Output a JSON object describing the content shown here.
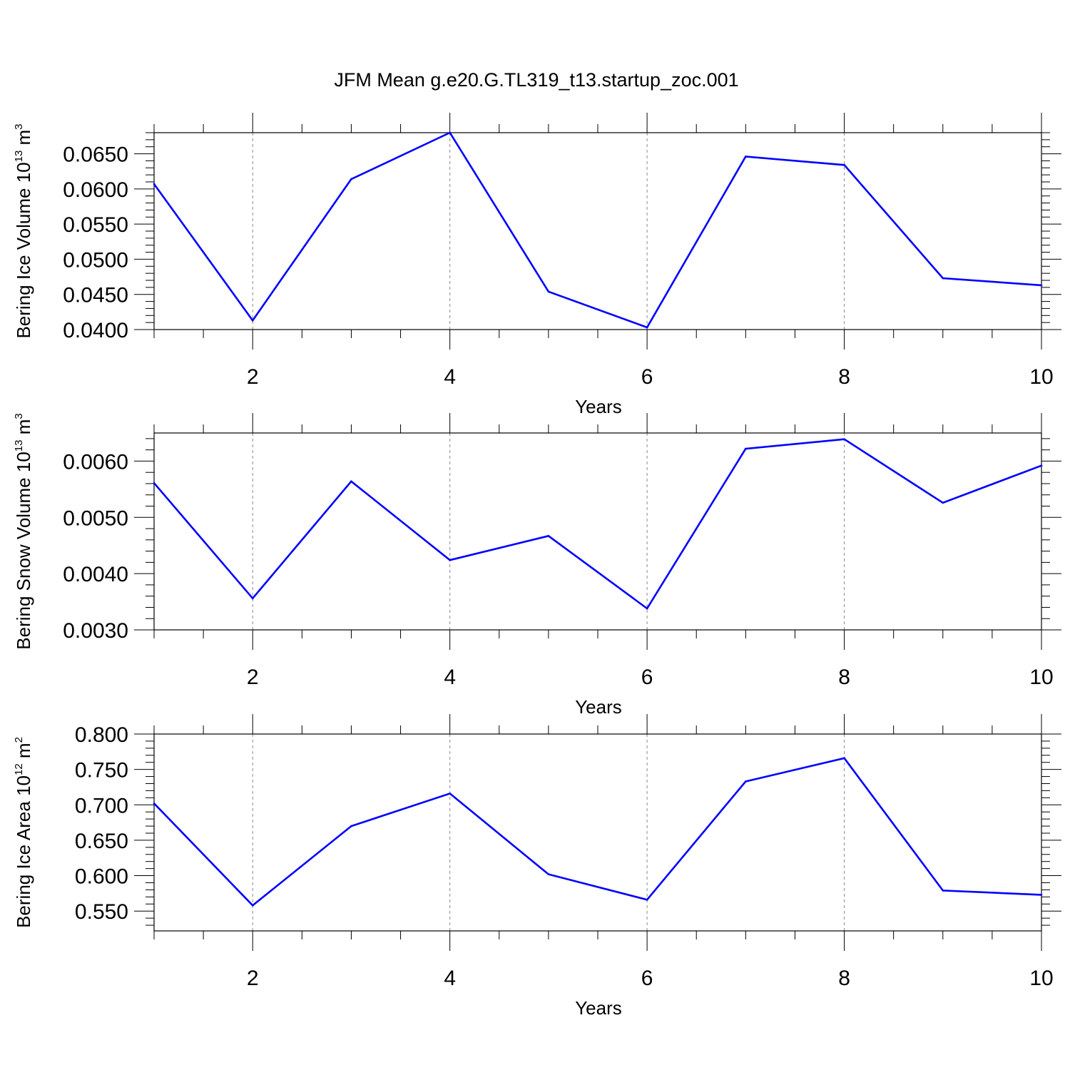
{
  "title": "JFM Mean g.e20.G.TL319_t13.startup_zoc.001",
  "colors": {
    "series": "#0000ff",
    "axes": "#000000",
    "grid": "#888888"
  },
  "chart_data": [
    {
      "type": "line",
      "ylabel": {
        "prefix": "Bering Ice Volume 10",
        "exp": "13",
        "unit": " m",
        "unit_exp": "3"
      },
      "xlabel": "Years",
      "xlim": [
        1,
        10
      ],
      "ylim": [
        0.04,
        0.068
      ],
      "x_ticks": [
        2,
        4,
        6,
        8,
        10
      ],
      "x_tick_labels": [
        "2",
        "4",
        "6",
        "8",
        "10"
      ],
      "y_ticks": [
        0.04,
        0.045,
        0.05,
        0.055,
        0.06,
        0.065
      ],
      "y_tick_labels": [
        "0.0400",
        "0.0450",
        "0.0500",
        "0.0550",
        "0.0600",
        "0.0650"
      ],
      "grid": "vertical dashed at major x ticks",
      "x": [
        1,
        2,
        3,
        4,
        5,
        6,
        7,
        8,
        9,
        10
      ],
      "values": [
        0.0607,
        0.0413,
        0.0614,
        0.068,
        0.0454,
        0.0403,
        0.0646,
        0.0634,
        0.0473,
        0.0463
      ]
    },
    {
      "type": "line",
      "ylabel": {
        "prefix": "Bering Snow Volume 10",
        "exp": "13",
        "unit": " m",
        "unit_exp": "3"
      },
      "xlabel": "Years",
      "xlim": [
        1,
        10
      ],
      "ylim": [
        0.003,
        0.0065
      ],
      "x_ticks": [
        2,
        4,
        6,
        8,
        10
      ],
      "x_tick_labels": [
        "2",
        "4",
        "6",
        "8",
        "10"
      ],
      "y_ticks": [
        0.003,
        0.004,
        0.005,
        0.006
      ],
      "y_tick_labels": [
        "0.0030",
        "0.0040",
        "0.0050",
        "0.0060"
      ],
      "grid": "vertical dashed at major x ticks",
      "x": [
        1,
        2,
        3,
        4,
        5,
        6,
        7,
        8,
        9,
        10
      ],
      "values": [
        0.00561,
        0.00356,
        0.00564,
        0.00424,
        0.00467,
        0.00338,
        0.00622,
        0.00639,
        0.00526,
        0.00592
      ]
    },
    {
      "type": "line",
      "ylabel": {
        "prefix": "Bering Ice Area 10",
        "exp": "12",
        "unit": " m",
        "unit_exp": "2"
      },
      "xlabel": "Years",
      "xlim": [
        1,
        10
      ],
      "ylim": [
        0.522,
        0.8
      ],
      "x_ticks": [
        2,
        4,
        6,
        8,
        10
      ],
      "x_tick_labels": [
        "2",
        "4",
        "6",
        "8",
        "10"
      ],
      "y_ticks": [
        0.55,
        0.6,
        0.65,
        0.7,
        0.75,
        0.8
      ],
      "y_tick_labels": [
        "0.550",
        "0.600",
        "0.650",
        "0.700",
        "0.750",
        "0.800"
      ],
      "grid": "vertical dashed at major x ticks",
      "x": [
        1,
        2,
        3,
        4,
        5,
        6,
        7,
        8,
        9,
        10
      ],
      "values": [
        0.702,
        0.558,
        0.67,
        0.716,
        0.602,
        0.566,
        0.733,
        0.766,
        0.579,
        0.573
      ]
    }
  ]
}
